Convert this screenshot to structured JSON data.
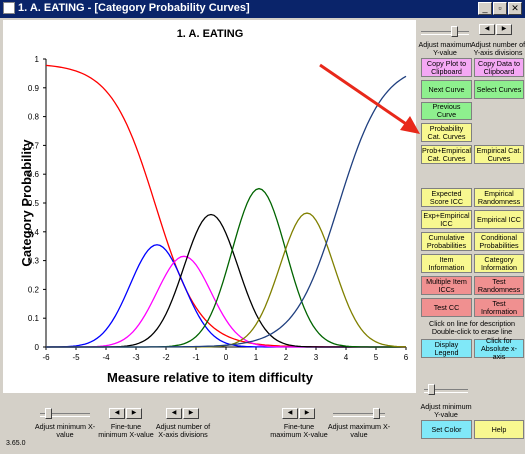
{
  "window": {
    "title": "1. A. EATING - [Category Probability Curves]"
  },
  "chart_data": {
    "type": "line",
    "title": "1. A. EATING",
    "xlabel": "Measure relative to item difficulty",
    "ylabel": "Category Probability",
    "xlim": [
      -6,
      6
    ],
    "ylim": [
      0,
      1
    ],
    "xticks": [
      "-6",
      "-5",
      "-4",
      "-3",
      "-2",
      "-1",
      "0",
      "1",
      "2",
      "3",
      "4",
      "5",
      "6"
    ],
    "yticks": [
      "0",
      "0.1",
      "0.2",
      "0.3",
      "0.4",
      "0.5",
      "0.6",
      "0.7",
      "0.8",
      "0.9",
      "1"
    ],
    "series": [
      {
        "color": "#ff0000",
        "kind": "decreasing",
        "points": [
          [
            -6,
            0.97
          ],
          [
            -5,
            0.94
          ],
          [
            -4,
            0.86
          ],
          [
            -3,
            0.66
          ],
          [
            -2,
            0.38
          ],
          [
            -1,
            0.14
          ],
          [
            0,
            0.04
          ],
          [
            1,
            0.01
          ],
          [
            2,
            0.0
          ],
          [
            3,
            0.0
          ],
          [
            4,
            0.0
          ],
          [
            5,
            0.0
          ],
          [
            6,
            0.0
          ]
        ]
      },
      {
        "color": "#0000ff",
        "kind": "bell",
        "peak_x": -2.3,
        "peak_y": 0.355
      },
      {
        "color": "#ff00ff",
        "kind": "bell",
        "peak_x": -1.4,
        "peak_y": 0.315
      },
      {
        "color": "#000000",
        "kind": "bell",
        "peak_x": -0.5,
        "peak_y": 0.46
      },
      {
        "color": "#006400",
        "kind": "bell",
        "peak_x": 1.1,
        "peak_y": 0.55
      },
      {
        "color": "#808000",
        "kind": "bell",
        "peak_x": 2.7,
        "peak_y": 0.465
      },
      {
        "color": "#1f3f7f",
        "kind": "increasing",
        "points": [
          [
            -6,
            0.0
          ],
          [
            -5,
            0.0
          ],
          [
            -4,
            0.0
          ],
          [
            -3,
            0.0
          ],
          [
            -2,
            0.0
          ],
          [
            -1,
            0.0
          ],
          [
            0,
            0.01
          ],
          [
            1,
            0.03
          ],
          [
            2,
            0.1
          ],
          [
            3,
            0.3
          ],
          [
            4,
            0.6
          ],
          [
            5,
            0.85
          ],
          [
            6,
            0.95
          ]
        ]
      }
    ]
  },
  "annotations": {
    "arrow_color": "#e8281a"
  },
  "right_panel": {
    "adjust_max_y": "Adjust maximum Y-value",
    "adjust_y_div": "Adjust number of Y-axis divisions",
    "copy_plot": "Copy Plot to Clipboard",
    "copy_data": "Copy Data to Clipboard",
    "next_curve": "Next Curve",
    "select_curves": "Select Curves",
    "previous_curve": "Previous Curve",
    "prob_cat_curves": "Probability Cat. Curves",
    "prob_empirical": "Prob+Empirical Cat. Curves",
    "empirical_cat": "Empirical Cat. Curves",
    "expected_score": "Expected Score ICC",
    "empirical_randomness": "Empirical Randomness",
    "exp_empirical_icc": "Exp+Empirical ICC",
    "empirical_icc": "Empirical ICC",
    "cumulative_prob": "Cumulative Probabilities",
    "conditional_prob": "Conditional Probabilities",
    "item_information": "Item Information",
    "category_information": "Category Information",
    "multiple_item_iccs": "Multiple Item ICCs",
    "test_randomness": "Test Randomness",
    "test_cc": "Test CC",
    "test_information": "Test Information",
    "click_desc": "Click on line for description Double-click to erase line",
    "display_legend": "Display Legend",
    "absolute_x": "Click for Absolute x-axis",
    "adjust_min_y": "Adjust minimum Y-value",
    "set_color": "Set Color",
    "help": "Help"
  },
  "bottom_panel": {
    "adjust_min_x": "Adjust minimum X-value",
    "fine_min_x": "Fine-tune minimum X-value",
    "adjust_x_div": "Adjust number of X-axis divisions",
    "fine_max_x": "Fine-tune maximum X-value",
    "adjust_max_x": "Adjust maximum X-value"
  },
  "version": "3.65.0"
}
